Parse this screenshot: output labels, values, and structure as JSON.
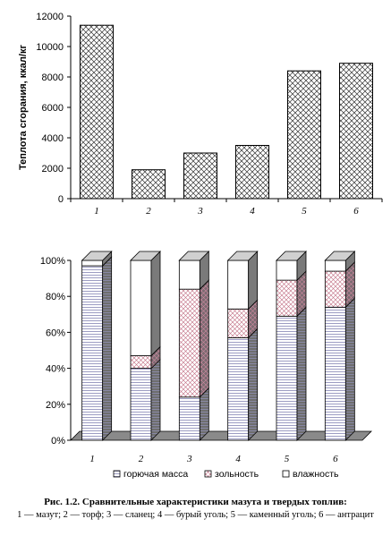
{
  "chart_data": [
    {
      "type": "bar",
      "categories": [
        "1",
        "2",
        "3",
        "4",
        "5",
        "6"
      ],
      "values": [
        11400,
        1900,
        3000,
        3500,
        8400,
        8900
      ],
      "ylabel": "Теплота сгорания, ккал/кг",
      "ylim": [
        0,
        12000
      ],
      "yticks": [
        "0",
        "2000",
        "4000",
        "6000",
        "8000",
        "10000",
        "12000"
      ],
      "grid": false
    },
    {
      "type": "bar",
      "stacked": "percent",
      "categories": [
        "1",
        "2",
        "3",
        "4",
        "5",
        "6"
      ],
      "series": [
        {
          "name": "горючая масса",
          "values": [
            97,
            40,
            24,
            57,
            69,
            74
          ]
        },
        {
          "name": "зольность",
          "values": [
            0,
            7,
            60,
            16,
            20,
            20
          ]
        },
        {
          "name": "влажность",
          "values": [
            3,
            53,
            16,
            27,
            11,
            6
          ]
        }
      ],
      "ylim": [
        0,
        100
      ],
      "yticks": [
        "0%",
        "20%",
        "40%",
        "60%",
        "80%",
        "100%"
      ],
      "legend_position": "bottom",
      "grid": false
    }
  ],
  "caption": {
    "title": "Рис. 1.2. Сравнительные характеристики мазута и твердых топлив:",
    "text": "1 — мазут; 2 — торф; 3 — сланец; 4 — бурый уголь; 5 — каменный уголь; 6 — антрацит"
  },
  "colors": {
    "stroke": "#000000",
    "hatch": "#444444",
    "side": "#888888",
    "top": "#cccccc",
    "ash": "#c06a80",
    "floor": "#808080"
  }
}
